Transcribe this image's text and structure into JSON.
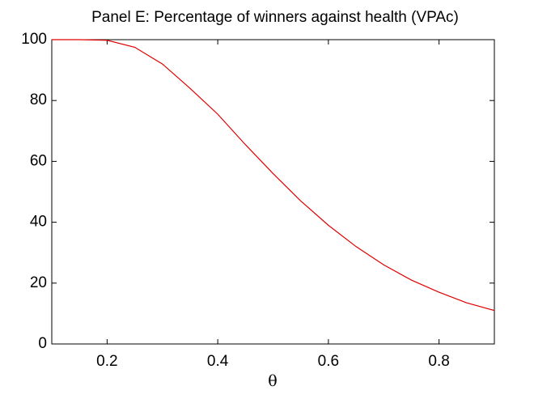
{
  "chart_data": {
    "type": "line",
    "title": "Panel E: Percentage of winners against health (VPAc)",
    "x_label": "θ",
    "x": [
      0.1,
      0.15,
      0.2,
      0.25,
      0.3,
      0.35,
      0.4,
      0.45,
      0.5,
      0.55,
      0.6,
      0.65,
      0.7,
      0.75,
      0.8,
      0.85,
      0.9
    ],
    "series": [
      {
        "color": "#e00000",
        "values": [
          100,
          100,
          99.8,
          97.5,
          92,
          84,
          75.5,
          65.5,
          56,
          47,
          39,
          32,
          26,
          21,
          17,
          13.5,
          11
        ]
      }
    ],
    "xlim": [
      0.1,
      0.9
    ],
    "xticks": [
      0.2,
      0.4,
      0.6,
      0.8
    ],
    "ylim": [
      0,
      100
    ],
    "yticks": [
      0,
      20,
      40,
      60,
      80,
      100
    ],
    "grid": false
  }
}
